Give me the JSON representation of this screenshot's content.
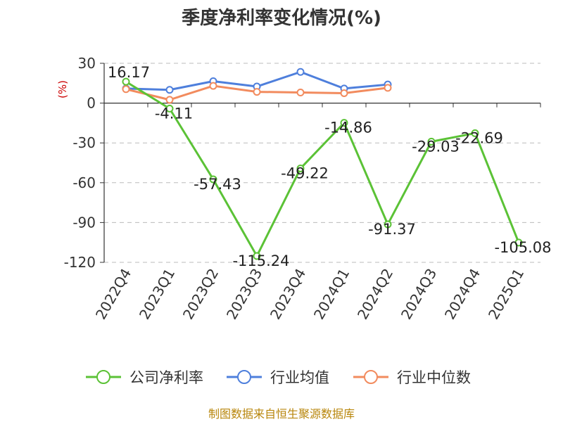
{
  "chart_data": {
    "type": "line",
    "title": "季度净利率变化情况(%)",
    "ylabel": "(%)",
    "categories": [
      "2022Q4",
      "2023Q1",
      "2023Q2",
      "2023Q3",
      "2023Q4",
      "2024Q1",
      "2024Q2",
      "2024Q3",
      "2024Q4",
      "2025Q1"
    ],
    "ylim": [
      -120,
      30
    ],
    "yticks": [
      30,
      0,
      -30,
      -60,
      -90,
      -120
    ],
    "grid": true,
    "legend_position": "bottom",
    "series": [
      {
        "name": "公司净利率",
        "color": "#5bc236",
        "values": [
          16.17,
          -4.11,
          -57.43,
          -115.24,
          -49.22,
          -14.86,
          -91.37,
          -29.03,
          -22.69,
          -105.08
        ],
        "labels": [
          "16.17",
          "-4.11",
          "-57.43",
          "-115.24",
          "-49.22",
          "-14.86",
          "-91.37",
          "-29.03",
          "-22.69",
          "-105.08"
        ]
      },
      {
        "name": "行业均值",
        "color": "#4e7fdc",
        "values": [
          11,
          10,
          16.5,
          12.5,
          23.5,
          11,
          14,
          null,
          null,
          null
        ]
      },
      {
        "name": "行业中位数",
        "color": "#f28b5e",
        "values": [
          10.5,
          2.5,
          13,
          8.5,
          8,
          7.5,
          11.5,
          null,
          null,
          null
        ]
      }
    ]
  },
  "footer": {
    "source": "制图数据来自恒生聚源数据库"
  }
}
